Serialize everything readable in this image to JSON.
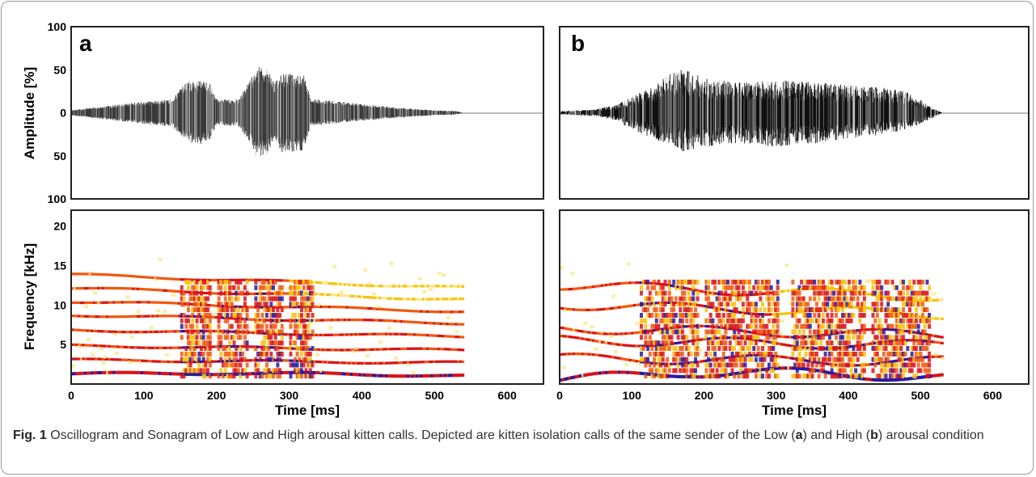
{
  "caption": {
    "fig_label": "Fig. 1",
    "text_1": " Oscillogram and Sonagram of Low and High arousal kitten calls. Depicted are kitten isolation calls of the same sender of the Low (",
    "ref_a": "a",
    "text_2": ") and High (",
    "ref_b": "b",
    "text_3": ") arousal condition"
  },
  "chart_data": [
    {
      "panel": "a",
      "type": "area",
      "subtype": "oscillogram",
      "ylabel": "Amplitude [%]",
      "y_ticks": [
        "100",
        "50",
        "0",
        "50",
        "100"
      ],
      "x_ticks": [
        "0",
        "100",
        "200",
        "300",
        "400",
        "500",
        "600"
      ],
      "xlim": [
        0,
        650
      ],
      "ylim": [
        -100,
        100
      ],
      "envelope": {
        "t": [
          0,
          20,
          60,
          100,
          140,
          150,
          160,
          170,
          190,
          200,
          230,
          250,
          255,
          270,
          280,
          290,
          320,
          330,
          360,
          400,
          450,
          500,
          530,
          540
        ],
        "upper": [
          3,
          5,
          9,
          13,
          16,
          28,
          36,
          38,
          36,
          16,
          15,
          45,
          55,
          50,
          35,
          47,
          44,
          16,
          14,
          10,
          6,
          3,
          2,
          0
        ],
        "lower": [
          -3,
          -5,
          -9,
          -13,
          -16,
          -27,
          -33,
          -37,
          -35,
          -15,
          -15,
          -40,
          -52,
          -48,
          -30,
          -46,
          -44,
          -15,
          -13,
          -9,
          -6,
          -3,
          -2,
          0
        ]
      }
    },
    {
      "panel": "b",
      "type": "area",
      "subtype": "oscillogram",
      "x_ticks": [
        "0",
        "100",
        "200",
        "300",
        "400",
        "500",
        "600"
      ],
      "xlim": [
        0,
        650
      ],
      "ylim": [
        -100,
        100
      ],
      "envelope": {
        "t": [
          0,
          50,
          80,
          100,
          130,
          150,
          170,
          200,
          250,
          300,
          350,
          400,
          440,
          480,
          510,
          530
        ],
        "upper": [
          2,
          4,
          10,
          20,
          30,
          45,
          52,
          40,
          35,
          38,
          36,
          32,
          30,
          25,
          10,
          0
        ],
        "lower": [
          -2,
          -4,
          -9,
          -20,
          -30,
          -38,
          -45,
          -40,
          -35,
          -40,
          -36,
          -30,
          -26,
          -20,
          -10,
          0
        ]
      }
    },
    {
      "panel": "a",
      "type": "heatmap",
      "subtype": "sonagram",
      "ylabel": "Frequency [kHz]",
      "xlabel": "Time [ms]",
      "y_ticks": [
        "20",
        "15",
        "10",
        "5"
      ],
      "x_ticks": [
        "0",
        "100",
        "200",
        "300",
        "400",
        "500",
        "600"
      ],
      "xlim": [
        0,
        650
      ],
      "ylim": [
        0,
        22
      ],
      "duration_ms": 540,
      "fundamental_khz": [
        1.3,
        1.35,
        1.3,
        1.0
      ],
      "harmonic_bands_khz": [
        1.3,
        3.0,
        4.8,
        6.8,
        8.7,
        10.4,
        12.1,
        13.8
      ],
      "broadband_bursts_ms": [
        [
          150,
          190
        ],
        [
          200,
          240
        ],
        [
          250,
          290
        ],
        [
          300,
          330
        ]
      ]
    },
    {
      "panel": "b",
      "type": "heatmap",
      "subtype": "sonagram",
      "xlabel": "Time [ms]",
      "x_ticks": [
        "0",
        "100",
        "200",
        "300",
        "400",
        "500",
        "600"
      ],
      "xlim": [
        0,
        650
      ],
      "ylim": [
        0,
        22
      ],
      "duration_ms": 530,
      "fundamental_khz": [
        0.5,
        1.5,
        1.4,
        0.8
      ],
      "harmonic_bands_khz": [
        1.5,
        3.2,
        5.5,
        7.0,
        10.0,
        12.5
      ],
      "broadband_bursts_ms": [
        [
          110,
          190
        ],
        [
          200,
          300
        ],
        [
          320,
          420
        ],
        [
          430,
          510
        ]
      ]
    }
  ]
}
